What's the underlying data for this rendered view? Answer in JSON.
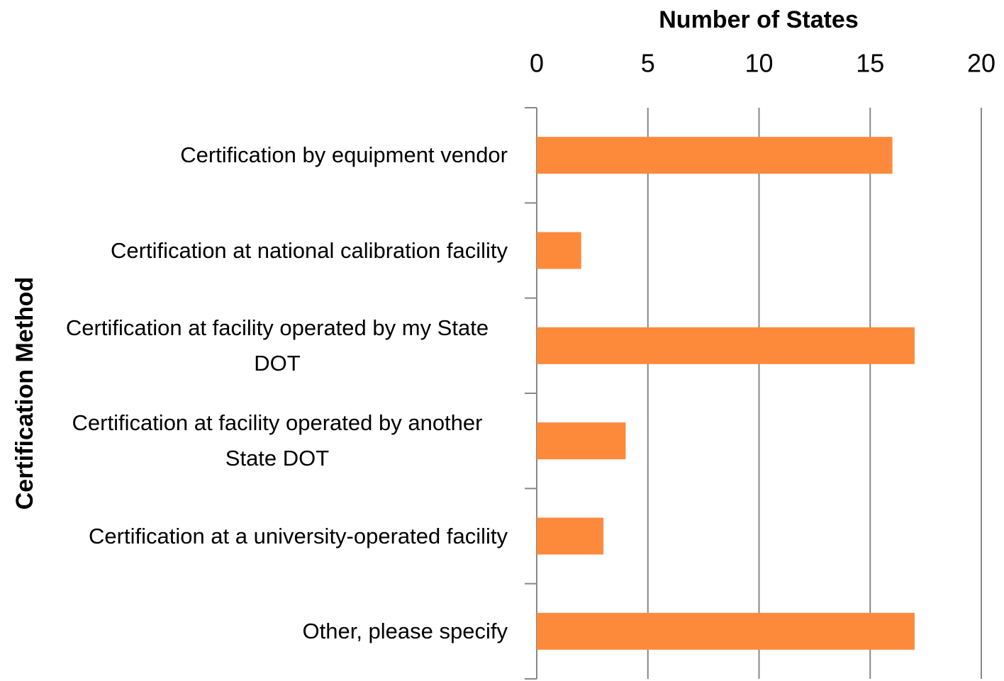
{
  "chart_data": {
    "type": "bar",
    "orientation": "horizontal",
    "x_label": "Number of States",
    "y_label": "Certification Method",
    "categories": [
      "Certification by equipment vendor",
      "Certification at national calibration facility",
      "Certification at facility operated by my State DOT",
      "Certification at facility operated by another State DOT",
      "Certification at a university-operated facility",
      "Other, please specify"
    ],
    "values": [
      16,
      2,
      17,
      4,
      3,
      17
    ],
    "color": "#fd8a3b",
    "xlim": [
      0,
      20
    ],
    "xticks": [
      0,
      5,
      10,
      15,
      20
    ],
    "grid": true
  }
}
